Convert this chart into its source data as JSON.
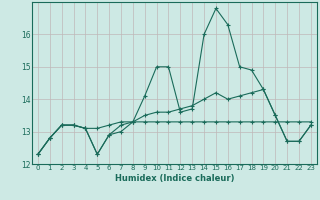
{
  "xlabel": "Humidex (Indice chaleur)",
  "background_color": "#cde9e4",
  "grid_color": "#c0b8b8",
  "line_color": "#1a6b5a",
  "x_min": -0.5,
  "x_max": 23.5,
  "y_min": 12,
  "y_max": 17.0,
  "x_ticks": [
    0,
    1,
    2,
    3,
    4,
    5,
    6,
    7,
    8,
    9,
    10,
    11,
    12,
    13,
    14,
    15,
    16,
    17,
    18,
    19,
    20,
    21,
    22,
    23
  ],
  "y_ticks": [
    12,
    13,
    14,
    15,
    16
  ],
  "series": [
    [
      12.3,
      12.8,
      13.2,
      13.2,
      13.1,
      12.3,
      12.9,
      13.0,
      13.3,
      14.1,
      15.0,
      15.0,
      13.6,
      13.7,
      16.0,
      16.8,
      16.3,
      15.0,
      14.9,
      14.3,
      13.5,
      12.7,
      12.7,
      13.2
    ],
    [
      12.3,
      12.8,
      13.2,
      13.2,
      13.1,
      12.3,
      12.9,
      13.2,
      13.3,
      13.5,
      13.6,
      13.6,
      13.7,
      13.8,
      14.0,
      14.2,
      14.0,
      14.1,
      14.2,
      14.3,
      13.5,
      12.7,
      12.7,
      13.2
    ],
    [
      12.3,
      12.8,
      13.2,
      13.2,
      13.1,
      13.1,
      13.2,
      13.3,
      13.3,
      13.3,
      13.3,
      13.3,
      13.3,
      13.3,
      13.3,
      13.3,
      13.3,
      13.3,
      13.3,
      13.3,
      13.3,
      13.3,
      13.3,
      13.3
    ]
  ],
  "xlabel_fontsize": 6.0,
  "tick_fontsize": 5.0
}
